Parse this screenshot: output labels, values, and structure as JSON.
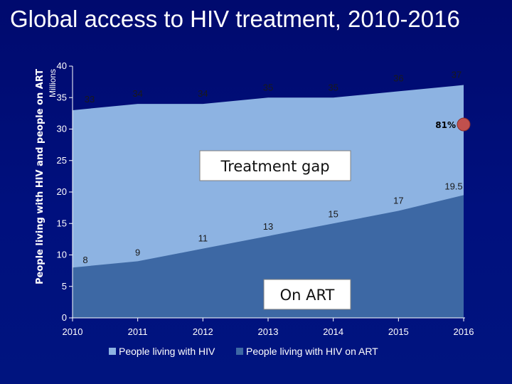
{
  "page": {
    "title": "Global access to HIV treatment, 2010-2016"
  },
  "chart_data": {
    "type": "area",
    "title": "Global access to HIV treatment, 2010-2016",
    "ylabel": "People living with HIV and people on ART",
    "yunit": "Millions",
    "x": [
      "2010",
      "2011",
      "2012",
      "2013",
      "2014",
      "2015",
      "2016"
    ],
    "ylim": [
      0,
      40
    ],
    "yticks": [
      0,
      5,
      10,
      15,
      20,
      25,
      30,
      35,
      40
    ],
    "grid": false,
    "legend_position": "bottom",
    "series": [
      {
        "name": "People living with HIV",
        "values": [
          33,
          34,
          34,
          35,
          35,
          36,
          37
        ],
        "labels": [
          "33",
          "34",
          "34",
          "35",
          "35",
          "36",
          "37"
        ],
        "color": "#8db3e2"
      },
      {
        "name": "People living with HIV on ART",
        "values": [
          8,
          9,
          11,
          13,
          15,
          17,
          19.5
        ],
        "labels": [
          "8",
          "9",
          "11",
          "13",
          "15",
          "17",
          "19.5"
        ],
        "color": "#3d68a4"
      }
    ],
    "annotations": {
      "gap_label": "Treatment gap",
      "art_label": "On ART",
      "coverage_label": "81%",
      "coverage_marker_color": "#c0504d"
    }
  }
}
